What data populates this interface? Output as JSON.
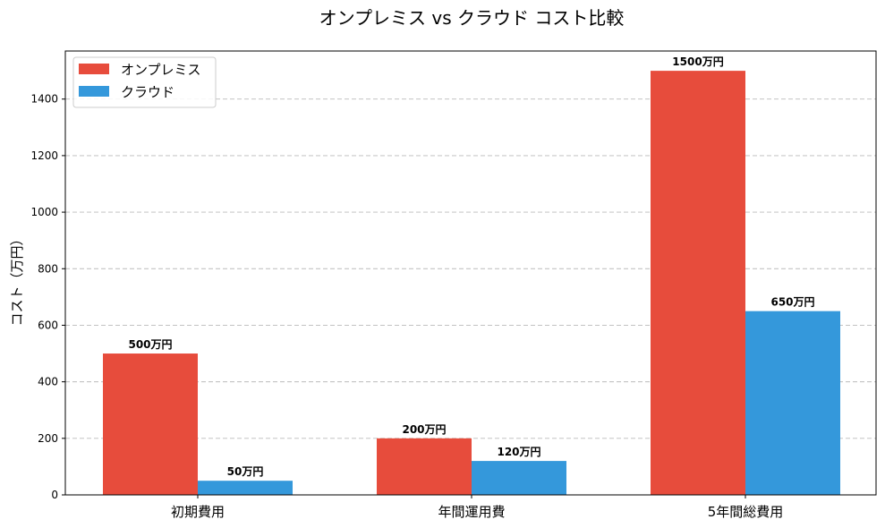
{
  "chart_data": {
    "type": "bar",
    "title": "オンプレミス vs クラウド コスト比較",
    "xlabel": "",
    "ylabel": "コスト（万円）",
    "categories": [
      "初期費用",
      "年間運用費",
      "5年間総費用"
    ],
    "series": [
      {
        "name": "オンプレミス",
        "color": "#e74c3c",
        "values": [
          500,
          200,
          1500
        ],
        "labels": [
          "500万円",
          "200万円",
          "1500万円"
        ]
      },
      {
        "name": "クラウド",
        "color": "#3498db",
        "values": [
          50,
          120,
          650
        ],
        "labels": [
          "50万円",
          "120万円",
          "650万円"
        ]
      }
    ],
    "ylim": [
      0,
      1570
    ],
    "yticks": [
      0,
      200,
      400,
      600,
      800,
      1000,
      1200,
      1400
    ],
    "grid": "y-dashed",
    "legend": "top-left"
  }
}
